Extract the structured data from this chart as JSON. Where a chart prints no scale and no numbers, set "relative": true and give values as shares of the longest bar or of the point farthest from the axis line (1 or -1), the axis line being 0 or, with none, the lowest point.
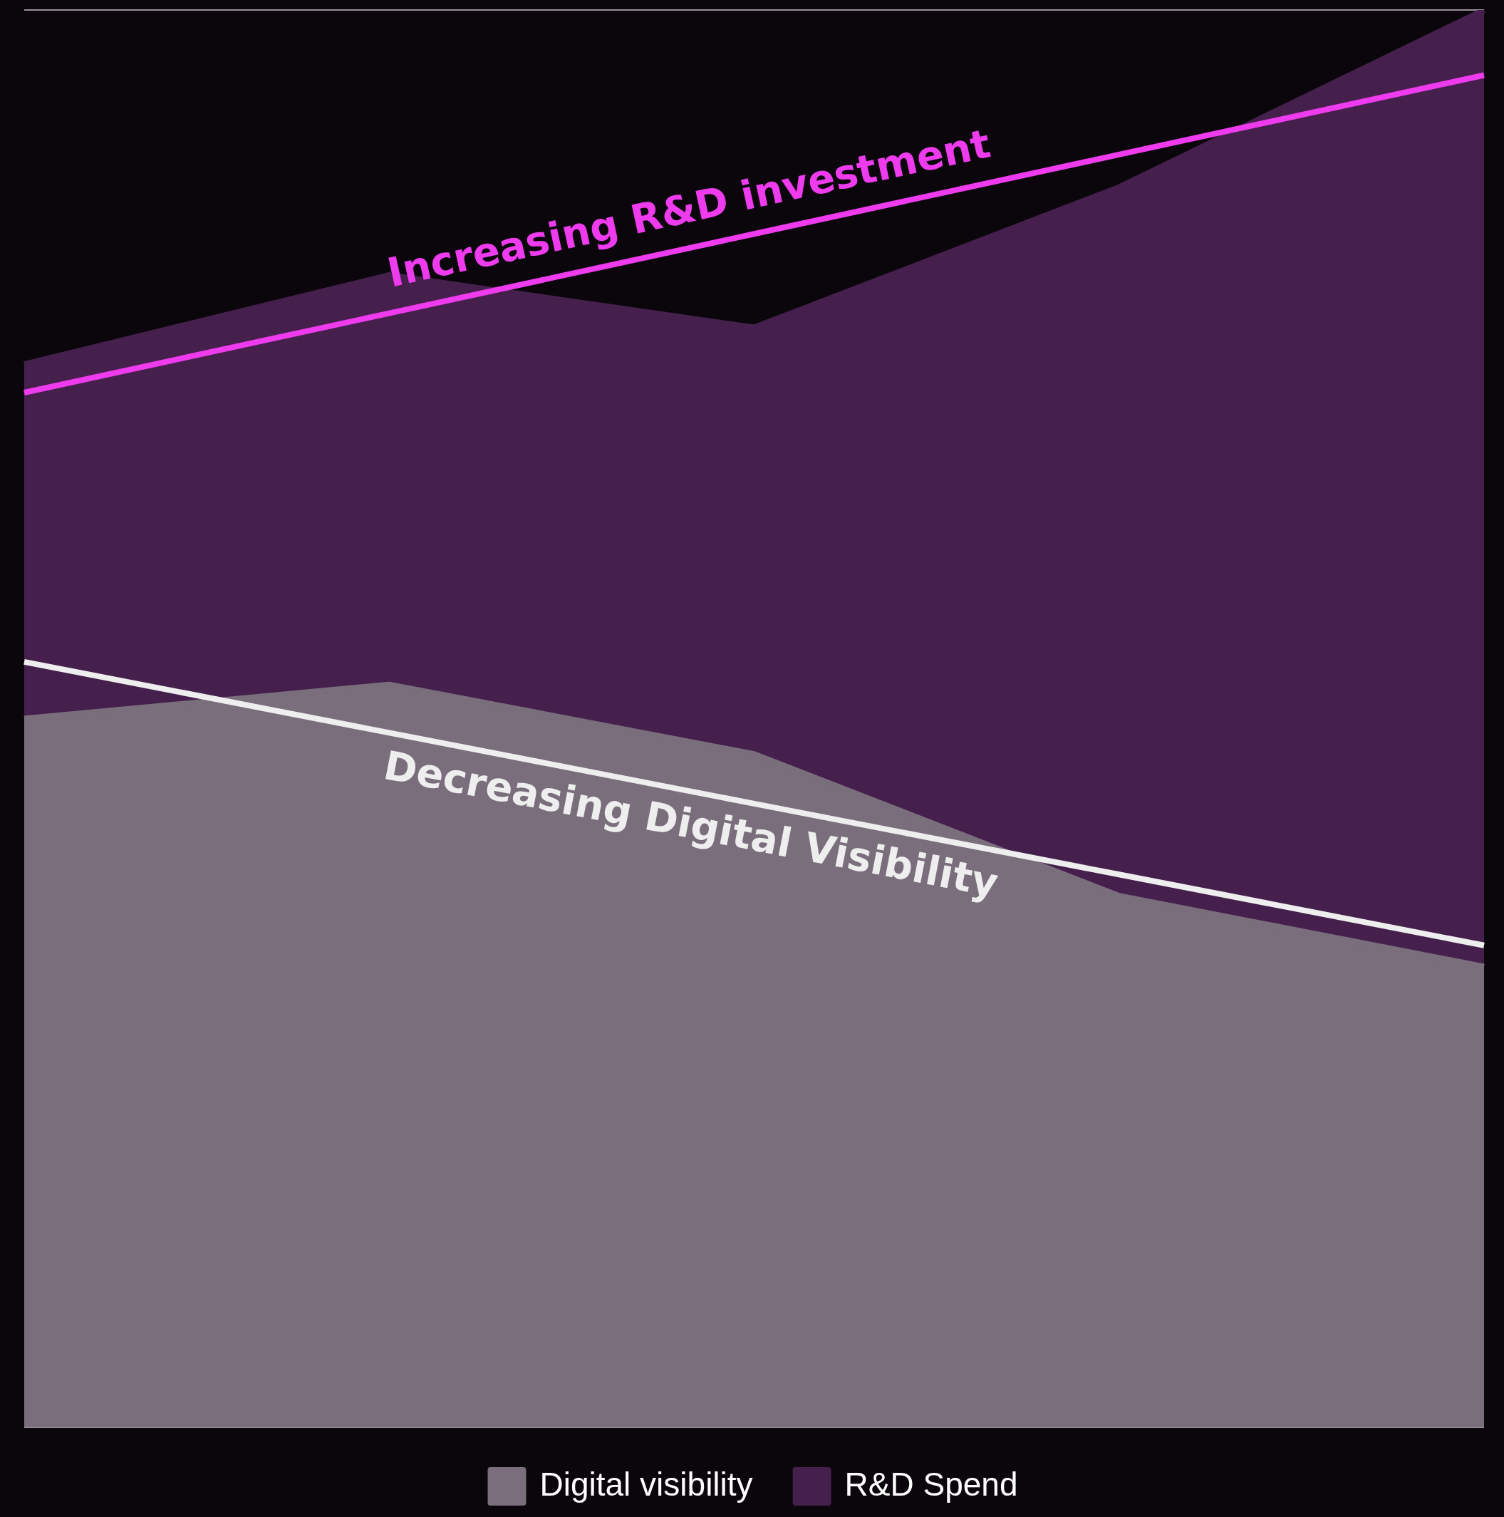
{
  "chart_data": {
    "type": "area",
    "relative": true,
    "categories": [
      null,
      null,
      null,
      null,
      null
    ],
    "series": [
      {
        "name": "Digital visibility",
        "type": "area",
        "color": "#7a6e7c",
        "values": [
          0.5,
          0.524,
          0.475,
          0.375,
          0.325
        ]
      },
      {
        "name": "R&D Spend",
        "type": "area",
        "color": "#45204d",
        "values": [
          0.75,
          0.813,
          0.776,
          0.875,
          1.0
        ]
      },
      {
        "type": "line",
        "color": "#ee3bee",
        "values": [
          0.73,
          0.786,
          0.842,
          0.898,
          0.954
        ]
      },
      {
        "type": "line",
        "color": "#eeeeee",
        "values": [
          0.54,
          0.49,
          0.44,
          0.39,
          0.34
        ]
      }
    ],
    "annotations": [
      "Increasing R&D investment",
      "Decreasing Digital Visibility"
    ],
    "grid": "y",
    "legend": "bottom"
  }
}
